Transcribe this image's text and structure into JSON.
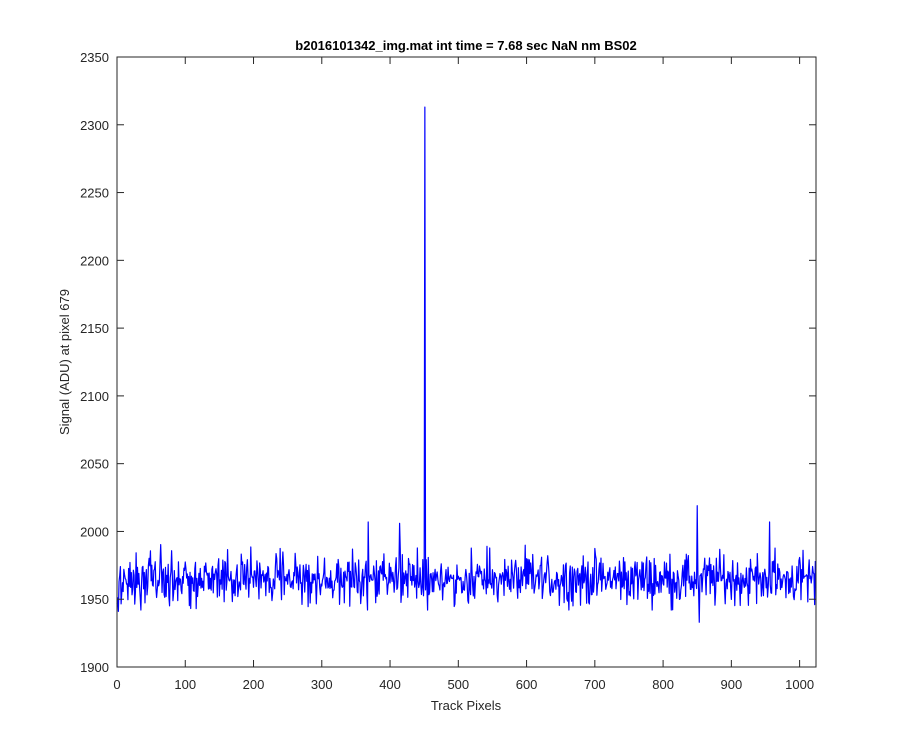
{
  "chart_data": {
    "type": "line",
    "title": "b2016101342_img.mat int time = 7.68 sec  NaN nm BS02",
    "xlabel": "Track Pixels",
    "ylabel": "Signal (ADU) at pixel 679",
    "xlim": [
      0,
      1024
    ],
    "ylim": [
      1900,
      2350
    ],
    "xticks": [
      0,
      100,
      200,
      300,
      400,
      500,
      600,
      700,
      800,
      900,
      1000
    ],
    "yticks": [
      1900,
      1950,
      2000,
      2050,
      2100,
      2150,
      2200,
      2250,
      2300,
      2350
    ],
    "grid": false,
    "box": true,
    "colors": {
      "series": "#0000ff",
      "axes": "#262626",
      "background": "#ffffff"
    },
    "series": [
      {
        "n_points": 1024,
        "baseline": 1965,
        "noise_amplitude": 18,
        "notable_points": [
          {
            "x": 2,
            "y": 1941
          },
          {
            "x": 368,
            "y": 2007
          },
          {
            "x": 414,
            "y": 2006
          },
          {
            "x": 451,
            "y": 2313
          },
          {
            "x": 850,
            "y": 2019
          },
          {
            "x": 853,
            "y": 1933
          },
          {
            "x": 956,
            "y": 2007
          },
          {
            "x": 1022,
            "y": 1946
          }
        ]
      }
    ]
  }
}
